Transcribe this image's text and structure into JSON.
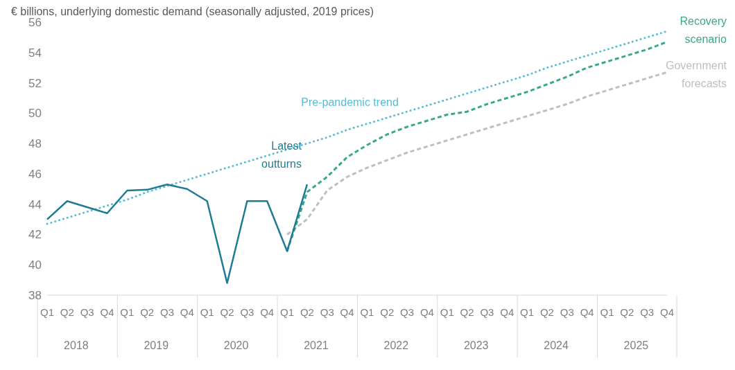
{
  "chart_data": {
    "type": "line",
    "subtitle": "€ billions, underlying domestic demand (seasonally adjusted, 2019 prices)",
    "categories": [
      "Q1",
      "Q2",
      "Q3",
      "Q4",
      "Q1",
      "Q2",
      "Q3",
      "Q4",
      "Q1",
      "Q2",
      "Q3",
      "Q4",
      "Q1",
      "Q2",
      "Q3",
      "Q4",
      "Q1",
      "Q2",
      "Q3",
      "Q4",
      "Q1",
      "Q2",
      "Q3",
      "Q4",
      "Q1",
      "Q2",
      "Q3",
      "Q4",
      "Q1",
      "Q2",
      "Q3",
      "Q4"
    ],
    "annotations": [
      "2018",
      "2019",
      "2020",
      "2021",
      "2022",
      "2023",
      "2024",
      "2025"
    ],
    "series": [
      {
        "name": "Government forecasts",
        "color": "#bfbfbf",
        "line_style": "dashed",
        "values": [
          null,
          null,
          null,
          null,
          null,
          null,
          null,
          null,
          null,
          null,
          null,
          null,
          42.0,
          43.0,
          44.9,
          45.8,
          46.4,
          46.9,
          47.4,
          47.8,
          48.2,
          48.6,
          49.0,
          49.4,
          49.8,
          50.2,
          50.6,
          51.1,
          51.5,
          51.9,
          52.3,
          52.7
        ]
      },
      {
        "name": "Pre-pandemic trend",
        "color": "#5bbcd6",
        "line_style": "dotted",
        "values": [
          42.7,
          43.1,
          43.5,
          43.9,
          44.3,
          44.8,
          45.2,
          45.6,
          46.0,
          46.4,
          46.8,
          47.2,
          47.6,
          48.0,
          48.4,
          48.9,
          49.3,
          49.7,
          50.1,
          50.5,
          50.9,
          51.3,
          51.7,
          52.1,
          52.5,
          53.0,
          53.4,
          53.8,
          54.2,
          54.6,
          55.0,
          55.4
        ]
      },
      {
        "name": "Recovery scenario",
        "color": "#3aa88a",
        "line_style": "dashed",
        "values": [
          null,
          null,
          null,
          null,
          null,
          null,
          null,
          null,
          null,
          null,
          null,
          null,
          40.9,
          44.8,
          45.8,
          47.1,
          47.9,
          48.6,
          49.1,
          49.5,
          49.9,
          50.1,
          50.6,
          51.0,
          51.4,
          51.9,
          52.4,
          53.0,
          53.4,
          53.8,
          54.2,
          54.7
        ]
      },
      {
        "name": "Latest outturns",
        "color": "#1f7a94",
        "line_style": "solid",
        "values": [
          43.0,
          44.2,
          43.8,
          43.4,
          44.9,
          44.95,
          45.3,
          45.0,
          44.2,
          38.8,
          44.2,
          44.2,
          40.9,
          45.3,
          null,
          null,
          null,
          null,
          null,
          null,
          null,
          null,
          null,
          null,
          null,
          null,
          null,
          null,
          null,
          null,
          null,
          null
        ]
      }
    ],
    "ylim": [
      38,
      56
    ],
    "yticks": [
      38,
      40,
      42,
      44,
      46,
      48,
      50,
      52,
      54,
      56
    ],
    "marker": "none"
  }
}
